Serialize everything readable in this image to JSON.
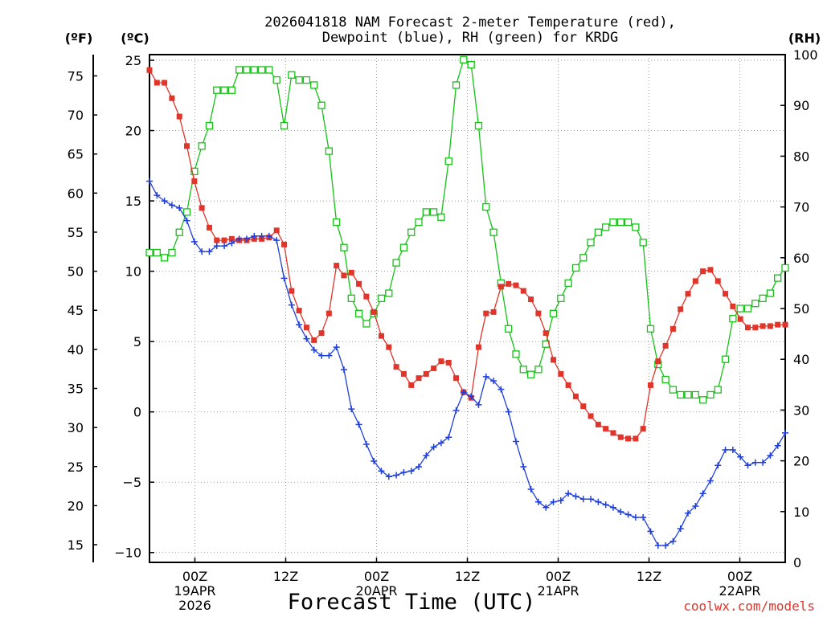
{
  "chart_data": {
    "type": "line",
    "title_line1": "2026041818 NAM Forecast 2-meter Temperature (red),",
    "title_line2": "Dewpoint (blue), RH (green) for KRDG",
    "xlabel": "Forecast Time (UTC)",
    "credit": "coolwx.com/models",
    "left_unit_f": "(ºF)",
    "left_unit_c": "(ºC)",
    "right_unit": "(RH)",
    "x_start_hour": 0,
    "x_end_hour": 84,
    "ylim_c": [
      -10.7,
      25.4
    ],
    "ylim_rh": [
      0,
      100
    ],
    "f_ticks": [
      "15",
      "20",
      "25",
      "30",
      "35",
      "40",
      "45",
      "50",
      "55",
      "60",
      "65",
      "70",
      "75"
    ],
    "c_ticks": [
      "−10",
      "−5",
      "0",
      "5",
      "10",
      "15",
      "20",
      "25"
    ],
    "rh_ticks": [
      "0",
      "10",
      "20",
      "30",
      "40",
      "50",
      "60",
      "70",
      "80",
      "90",
      "100"
    ],
    "x_ticks": [
      {
        "hour": 6,
        "line1": "00Z",
        "line2": "19APR",
        "line3": "2026"
      },
      {
        "hour": 18,
        "line1": "12Z",
        "line2": "",
        "line3": ""
      },
      {
        "hour": 30,
        "line1": "00Z",
        "line2": "20APR",
        "line3": ""
      },
      {
        "hour": 42,
        "line1": "12Z",
        "line2": "",
        "line3": ""
      },
      {
        "hour": 54,
        "line1": "00Z",
        "line2": "21APR",
        "line3": ""
      },
      {
        "hour": 66,
        "line1": "12Z",
        "line2": "",
        "line3": ""
      },
      {
        "hour": 78,
        "line1": "00Z",
        "line2": "22APR",
        "line3": ""
      }
    ],
    "series": [
      {
        "name": "Temperature",
        "color": "#e0352b",
        "marker": "filled-square",
        "axis": "c",
        "values": [
          24.3,
          23.4,
          23.4,
          22.3,
          21.0,
          18.9,
          16.4,
          14.5,
          13.1,
          12.2,
          12.2,
          12.3,
          12.2,
          12.2,
          12.3,
          12.3,
          12.4,
          12.9,
          11.9,
          8.6,
          7.2,
          6.0,
          5.1,
          5.6,
          7.0,
          10.4,
          9.7,
          9.9,
          9.1,
          8.2,
          7.1,
          5.4,
          4.6,
          3.2,
          2.7,
          1.9,
          2.4,
          2.7,
          3.1,
          3.6,
          3.5,
          2.4,
          1.4,
          1.0,
          4.6,
          7.0,
          7.1,
          8.9,
          9.1,
          9.0,
          8.6,
          8.0,
          7.0,
          5.6,
          3.7,
          2.7,
          1.9,
          1.1,
          0.4,
          -0.3,
          -0.9,
          -1.2,
          -1.5,
          -1.8,
          -1.9,
          -1.9,
          -1.2,
          1.9,
          3.6,
          4.7,
          5.9,
          7.3,
          8.4,
          9.3,
          10.0,
          10.1,
          9.3,
          8.4,
          7.5,
          6.6,
          6.0,
          6.0,
          6.1,
          6.1,
          6.2,
          6.2
        ]
      },
      {
        "name": "Dewpoint",
        "color": "#1f3fdc",
        "marker": "plus",
        "axis": "c",
        "values": [
          16.4,
          15.4,
          15.0,
          14.7,
          14.5,
          13.6,
          12.1,
          11.4,
          11.4,
          11.8,
          11.8,
          12.0,
          12.3,
          12.3,
          12.5,
          12.5,
          12.5,
          12.2,
          9.5,
          7.6,
          6.2,
          5.2,
          4.4,
          4.0,
          4.0,
          4.6,
          3.0,
          0.2,
          -0.9,
          -2.3,
          -3.5,
          -4.2,
          -4.6,
          -4.5,
          -4.3,
          -4.2,
          -3.9,
          -3.1,
          -2.5,
          -2.2,
          -1.8,
          0.1,
          1.4,
          1.1,
          0.5,
          2.5,
          2.2,
          1.6,
          0.0,
          -2.1,
          -3.9,
          -5.5,
          -6.4,
          -6.8,
          -6.4,
          -6.3,
          -5.8,
          -6.0,
          -6.2,
          -6.2,
          -6.4,
          -6.6,
          -6.8,
          -7.1,
          -7.3,
          -7.5,
          -7.5,
          -8.5,
          -9.5,
          -9.5,
          -9.2,
          -8.3,
          -7.2,
          -6.7,
          -5.8,
          -4.9,
          -3.8,
          -2.7,
          -2.7,
          -3.2,
          -3.8,
          -3.6,
          -3.6,
          -3.1,
          -2.4,
          -1.5
        ]
      },
      {
        "name": "RH",
        "color": "#15c215",
        "marker": "open-square",
        "axis": "rh",
        "values": [
          61,
          61,
          60,
          61,
          65,
          69,
          77,
          82,
          86,
          93,
          93,
          93,
          97,
          97,
          97,
          97,
          97,
          95,
          86,
          96,
          95,
          95,
          94,
          90,
          81,
          67,
          62,
          52,
          49,
          47,
          49,
          52,
          53,
          59,
          62,
          65,
          67,
          69,
          69,
          68,
          79,
          94,
          99,
          98,
          86,
          70,
          65,
          55,
          46,
          41,
          38,
          37,
          38,
          43,
          49,
          52,
          55,
          58,
          60,
          63,
          65,
          66,
          67,
          67,
          67,
          66,
          63,
          46,
          39,
          36,
          34,
          33,
          33,
          33,
          32,
          33,
          34,
          40,
          48,
          50,
          50,
          51,
          52,
          53,
          56,
          58
        ]
      }
    ]
  }
}
